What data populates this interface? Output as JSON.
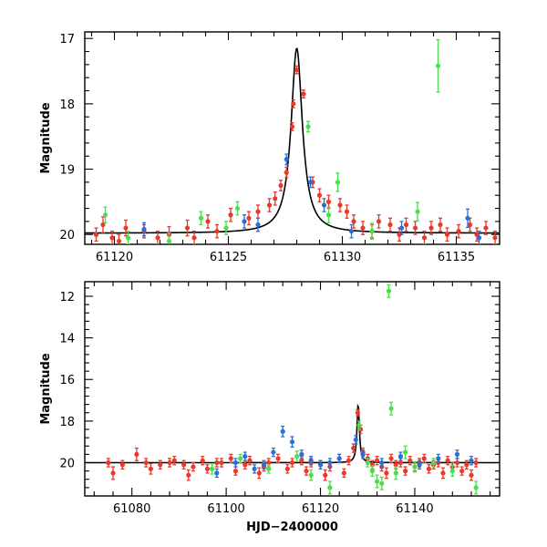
{
  "chart_data": [
    {
      "type": "scatter",
      "title": "",
      "xlabel": "",
      "ylabel": "Magnitude",
      "xlim": [
        61118.7,
        61136.9
      ],
      "ylim": [
        20.15,
        16.9
      ],
      "y_inverted": true,
      "xticks": [
        61120,
        61125,
        61130,
        61135
      ],
      "xtick_labels": [
        "61120",
        "61125",
        "61130",
        "61135"
      ],
      "yticks": [
        17,
        18,
        19,
        20
      ],
      "ytick_labels": [
        "17",
        "18",
        "19",
        "20"
      ],
      "model": {
        "baseline": 19.98,
        "t0": 61128.0,
        "peak": 17.15,
        "width": 0.3,
        "color": "#000000"
      },
      "series": [
        {
          "name": "red",
          "color": "#e8392b",
          "points": [
            [
              61119.2,
              20.0,
              0.1
            ],
            [
              61119.5,
              19.85,
              0.12
            ],
            [
              61119.9,
              20.05,
              0.1
            ],
            [
              61120.2,
              20.1,
              0.1
            ],
            [
              61120.5,
              19.9,
              0.12
            ],
            [
              61121.3,
              19.95,
              0.1
            ],
            [
              61121.9,
              20.05,
              0.1
            ],
            [
              61122.4,
              20.0,
              0.12
            ],
            [
              61123.2,
              19.9,
              0.12
            ],
            [
              61123.5,
              20.05,
              0.1
            ],
            [
              61124.1,
              19.8,
              0.1
            ],
            [
              61124.5,
              19.95,
              0.1
            ],
            [
              61125.1,
              19.7,
              0.1
            ],
            [
              61125.9,
              19.75,
              0.1
            ],
            [
              61126.3,
              19.65,
              0.1
            ],
            [
              61126.8,
              19.55,
              0.1
            ],
            [
              61127.05,
              19.45,
              0.1
            ],
            [
              61127.3,
              19.25,
              0.08
            ],
            [
              61127.55,
              19.05,
              0.08
            ],
            [
              61127.8,
              18.35,
              0.06
            ],
            [
              61127.85,
              18.0,
              0.06
            ],
            [
              61128.0,
              17.48,
              0.06
            ],
            [
              61128.3,
              17.85,
              0.06
            ],
            [
              61128.7,
              19.2,
              0.08
            ],
            [
              61129.0,
              19.4,
              0.1
            ],
            [
              61129.4,
              19.5,
              0.1
            ],
            [
              61129.9,
              19.55,
              0.1
            ],
            [
              61130.2,
              19.65,
              0.1
            ],
            [
              61130.5,
              19.8,
              0.1
            ],
            [
              61130.9,
              19.9,
              0.1
            ],
            [
              61131.3,
              19.95,
              0.1
            ],
            [
              61131.6,
              19.8,
              0.1
            ],
            [
              61132.1,
              19.85,
              0.1
            ],
            [
              61132.5,
              20.0,
              0.1
            ],
            [
              61132.8,
              19.85,
              0.1
            ],
            [
              61133.2,
              19.9,
              0.1
            ],
            [
              61133.6,
              20.05,
              0.1
            ],
            [
              61133.9,
              19.9,
              0.1
            ],
            [
              61134.3,
              19.85,
              0.1
            ],
            [
              61134.6,
              20.0,
              0.1
            ],
            [
              61135.1,
              19.95,
              0.1
            ],
            [
              61135.6,
              19.85,
              0.1
            ],
            [
              61135.9,
              20.0,
              0.1
            ],
            [
              61136.3,
              19.9,
              0.1
            ],
            [
              61136.7,
              20.05,
              0.1
            ]
          ]
        },
        {
          "name": "blue",
          "color": "#2a6fd6",
          "points": [
            [
              61121.3,
              19.92,
              0.1
            ],
            [
              61125.7,
              19.8,
              0.1
            ],
            [
              61126.3,
              19.85,
              0.1
            ],
            [
              61127.55,
              18.85,
              0.08
            ],
            [
              61128.6,
              19.2,
              0.08
            ],
            [
              61129.2,
              19.55,
              0.1
            ],
            [
              61130.4,
              19.95,
              0.1
            ],
            [
              61132.6,
              19.9,
              0.1
            ],
            [
              61135.5,
              19.75,
              0.14
            ],
            [
              61136.0,
              20.05,
              0.1
            ]
          ]
        },
        {
          "name": "green",
          "color": "#4ade4a",
          "points": [
            [
              61119.6,
              19.7,
              0.12
            ],
            [
              61120.6,
              20.05,
              0.1
            ],
            [
              61122.4,
              20.1,
              0.12
            ],
            [
              61123.8,
              19.75,
              0.1
            ],
            [
              61124.9,
              19.9,
              0.1
            ],
            [
              61125.4,
              19.6,
              0.1
            ],
            [
              61128.5,
              18.35,
              0.08
            ],
            [
              61129.4,
              19.7,
              0.12
            ],
            [
              61129.8,
              19.2,
              0.14
            ],
            [
              61131.3,
              19.95,
              0.12
            ],
            [
              61133.3,
              19.65,
              0.14
            ],
            [
              61134.2,
              17.42,
              0.4
            ]
          ]
        }
      ]
    },
    {
      "type": "scatter",
      "title": "",
      "xlabel": "HJD−2400000",
      "ylabel": "Magnitude",
      "xlim": [
        61070,
        61158
      ],
      "ylim": [
        21.6,
        11.3
      ],
      "y_inverted": true,
      "xticks": [
        61080,
        61100,
        61120,
        61140
      ],
      "xtick_labels": [
        "61080",
        "61100",
        "61120",
        "61140"
      ],
      "yticks": [
        12,
        14,
        16,
        18,
        20
      ],
      "ytick_labels": [
        "12",
        "14",
        "16",
        "18",
        "20"
      ],
      "model": {
        "baseline": 20.0,
        "t0": 61128.0,
        "peak": 17.15,
        "width": 0.3,
        "color": "#000000"
      },
      "series": [
        {
          "name": "red",
          "color": "#e8392b",
          "points": [
            [
              61075,
              20.0,
              0.2
            ],
            [
              61076,
              20.5,
              0.3
            ],
            [
              61078,
              20.1,
              0.2
            ],
            [
              61081,
              19.6,
              0.3
            ],
            [
              61083,
              20.0,
              0.2
            ],
            [
              61084,
              20.3,
              0.25
            ],
            [
              61086,
              20.1,
              0.2
            ],
            [
              61088,
              20.0,
              0.2
            ],
            [
              61089,
              19.9,
              0.2
            ],
            [
              61091,
              20.1,
              0.2
            ],
            [
              61092,
              20.6,
              0.25
            ],
            [
              61093,
              20.2,
              0.2
            ],
            [
              61095,
              19.9,
              0.2
            ],
            [
              61096,
              20.3,
              0.2
            ],
            [
              61098,
              20.0,
              0.2
            ],
            [
              61099,
              20.0,
              0.2
            ],
            [
              61101,
              19.8,
              0.2
            ],
            [
              61102,
              20.4,
              0.2
            ],
            [
              61104,
              20.1,
              0.2
            ],
            [
              61105,
              19.9,
              0.2
            ],
            [
              61107,
              20.5,
              0.25
            ],
            [
              61108,
              20.2,
              0.2
            ],
            [
              61109,
              20.0,
              0.2
            ],
            [
              61111,
              19.8,
              0.2
            ],
            [
              61113,
              20.3,
              0.2
            ],
            [
              61114,
              20.0,
              0.2
            ],
            [
              61116,
              19.9,
              0.2
            ],
            [
              61117,
              20.4,
              0.2
            ],
            [
              61118,
              20.0,
              0.2
            ],
            [
              61120,
              20.1,
              0.2
            ],
            [
              61121,
              20.6,
              0.25
            ],
            [
              61122,
              20.2,
              0.2
            ],
            [
              61124,
              19.8,
              0.2
            ],
            [
              61125,
              20.5,
              0.2
            ],
            [
              61126,
              19.9,
              0.2
            ],
            [
              61127,
              19.3,
              0.2
            ],
            [
              61127.9,
              17.6,
              0.15
            ],
            [
              61128.5,
              18.4,
              0.2
            ],
            [
              61129,
              19.5,
              0.2
            ],
            [
              61130,
              19.8,
              0.2
            ],
            [
              61131,
              20.1,
              0.2
            ],
            [
              61132,
              19.9,
              0.2
            ],
            [
              61133,
              20.2,
              0.2
            ],
            [
              61134,
              20.5,
              0.25
            ],
            [
              61135,
              19.8,
              0.2
            ],
            [
              61136,
              20.1,
              0.2
            ],
            [
              61137,
              20.0,
              0.2
            ],
            [
              61138,
              20.4,
              0.2
            ],
            [
              61139,
              19.9,
              0.2
            ],
            [
              61140,
              20.2,
              0.2
            ],
            [
              61141,
              20.0,
              0.2
            ],
            [
              61142,
              19.8,
              0.2
            ],
            [
              61143,
              20.3,
              0.2
            ],
            [
              61144,
              20.1,
              0.2
            ],
            [
              61145,
              20.0,
              0.2
            ],
            [
              61146,
              20.5,
              0.25
            ],
            [
              61147,
              19.9,
              0.2
            ],
            [
              61148,
              20.2,
              0.2
            ],
            [
              61149,
              20.0,
              0.2
            ],
            [
              61150,
              20.4,
              0.2
            ],
            [
              61151,
              20.1,
              0.2
            ],
            [
              61152,
              20.6,
              0.25
            ],
            [
              61153,
              20.0,
              0.2
            ]
          ]
        },
        {
          "name": "blue",
          "color": "#2a6fd6",
          "points": [
            [
              61098,
              20.5,
              0.2
            ],
            [
              61102,
              20.0,
              0.2
            ],
            [
              61104,
              19.7,
              0.2
            ],
            [
              61106,
              20.3,
              0.2
            ],
            [
              61108,
              20.1,
              0.2
            ],
            [
              61110,
              19.5,
              0.2
            ],
            [
              61112,
              18.5,
              0.25
            ],
            [
              61114,
              19.0,
              0.25
            ],
            [
              61116,
              19.6,
              0.2
            ],
            [
              61118,
              19.9,
              0.2
            ],
            [
              61120,
              20.1,
              0.2
            ],
            [
              61122,
              20.0,
              0.2
            ],
            [
              61124,
              19.8,
              0.2
            ],
            [
              61127.5,
              18.9,
              0.2
            ],
            [
              61129,
              19.6,
              0.2
            ],
            [
              61133,
              20.0,
              0.2
            ],
            [
              61137,
              19.7,
              0.2
            ],
            [
              61141,
              20.1,
              0.2
            ],
            [
              61145,
              19.8,
              0.2
            ],
            [
              61149,
              19.6,
              0.2
            ],
            [
              61152,
              19.9,
              0.2
            ]
          ]
        },
        {
          "name": "green",
          "color": "#4ade4a",
          "points": [
            [
              61097,
              20.3,
              0.25
            ],
            [
              61103,
              19.8,
              0.2
            ],
            [
              61109,
              20.3,
              0.2
            ],
            [
              61115,
              19.7,
              0.25
            ],
            [
              61118,
              20.6,
              0.25
            ],
            [
              61122,
              21.2,
              0.3
            ],
            [
              61128.2,
              18.2,
              0.2
            ],
            [
              61130,
              20.0,
              0.2
            ],
            [
              61131,
              20.4,
              0.25
            ],
            [
              61132,
              20.9,
              0.3
            ],
            [
              61133,
              21.0,
              0.3
            ],
            [
              61134.5,
              11.75,
              0.3
            ],
            [
              61135,
              17.4,
              0.3
            ],
            [
              61136,
              20.5,
              0.3
            ],
            [
              61138,
              19.5,
              0.3
            ],
            [
              61140,
              20.2,
              0.25
            ],
            [
              61144,
              20.0,
              0.2
            ],
            [
              61148,
              20.4,
              0.25
            ],
            [
              61153,
              21.2,
              0.3
            ]
          ]
        }
      ]
    }
  ]
}
